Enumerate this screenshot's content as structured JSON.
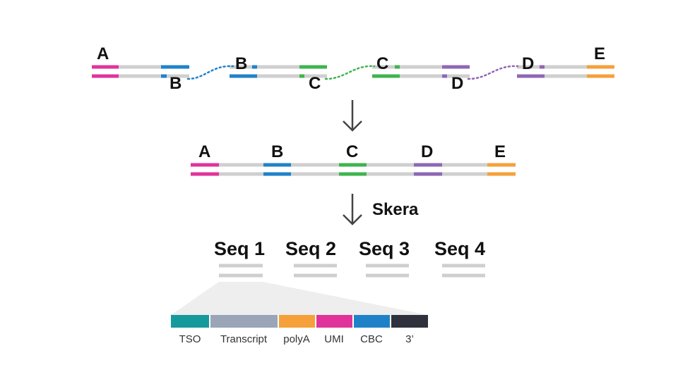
{
  "colors": {
    "A": "#e0339a",
    "B": "#1f82c8",
    "C": "#3fb44f",
    "D": "#8e67b5",
    "E": "#f5a03a",
    "line": "#cfcfcf",
    "arrow": "#444444"
  },
  "top_row": {
    "labels": [
      "A",
      "B",
      "B",
      "C",
      "C",
      "D",
      "D",
      "E"
    ]
  },
  "joined_row": {
    "labels": [
      "A",
      "B",
      "C",
      "D",
      "E"
    ]
  },
  "step_label": "Skera",
  "sequences": [
    "Seq 1",
    "Seq 2",
    "Seq 3",
    "Seq 4"
  ],
  "legend": [
    {
      "label": "TSO",
      "color": "#16999c"
    },
    {
      "label": "Transcript",
      "color": "#9aa6b8"
    },
    {
      "label": "polyA",
      "color": "#f5a03a"
    },
    {
      "label": "UMI",
      "color": "#e0339a"
    },
    {
      "label": "CBC",
      "color": "#1f82c8"
    },
    {
      "label": "3’",
      "color": "#2f323c"
    }
  ]
}
